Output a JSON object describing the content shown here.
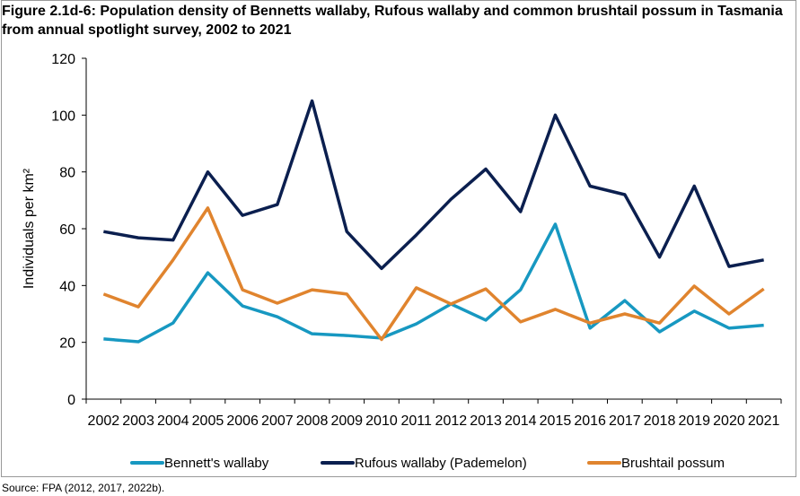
{
  "chart_data": {
    "type": "line",
    "title": "Figure 2.1d-6: Population density of Bennetts wallaby, Rufous wallaby and common brushtail possum in Tasmania from annual spotlight survey, 2002 to 2021",
    "xlabel": "",
    "ylabel": "Individuals per km²",
    "ylim": [
      0,
      120
    ],
    "yticks": [
      0,
      20,
      40,
      60,
      80,
      100,
      120
    ],
    "grid": false,
    "legend_position": "bottom",
    "categories": [
      "2002",
      "2003",
      "2004",
      "2005",
      "2006",
      "2007",
      "2008",
      "2009",
      "2010",
      "2011",
      "2012",
      "2013",
      "2014",
      "2015",
      "2016",
      "2017",
      "2018",
      "2019",
      "2020",
      "2021"
    ],
    "series": [
      {
        "name": "Bennett's wallaby",
        "color": "#1798C1",
        "values": [
          21.2,
          20.2,
          26.8,
          44.5,
          32.8,
          29,
          23,
          22.4,
          21.5,
          26.5,
          33.5,
          27.8,
          38.5,
          61.6,
          25,
          34.7,
          23.7,
          31,
          25,
          26
        ]
      },
      {
        "name": "Rufous wallaby (Pademelon)",
        "color": "#0B1F4F",
        "values": [
          59,
          56.8,
          56,
          80,
          64.7,
          68.5,
          105,
          59,
          46,
          57.8,
          70.4,
          81,
          66,
          100,
          75,
          72,
          50,
          75,
          46.7,
          49
        ]
      },
      {
        "name": "Brushtail possum",
        "color": "#E0842E",
        "values": [
          37,
          32.5,
          49,
          67.3,
          38.5,
          33.8,
          38.5,
          37,
          21,
          39.2,
          33.5,
          38.8,
          27.2,
          31.6,
          26.8,
          30,
          26.8,
          39.8,
          30,
          38.8
        ]
      }
    ]
  },
  "source": "Source: FPA (2012, 2017, 2022b)."
}
